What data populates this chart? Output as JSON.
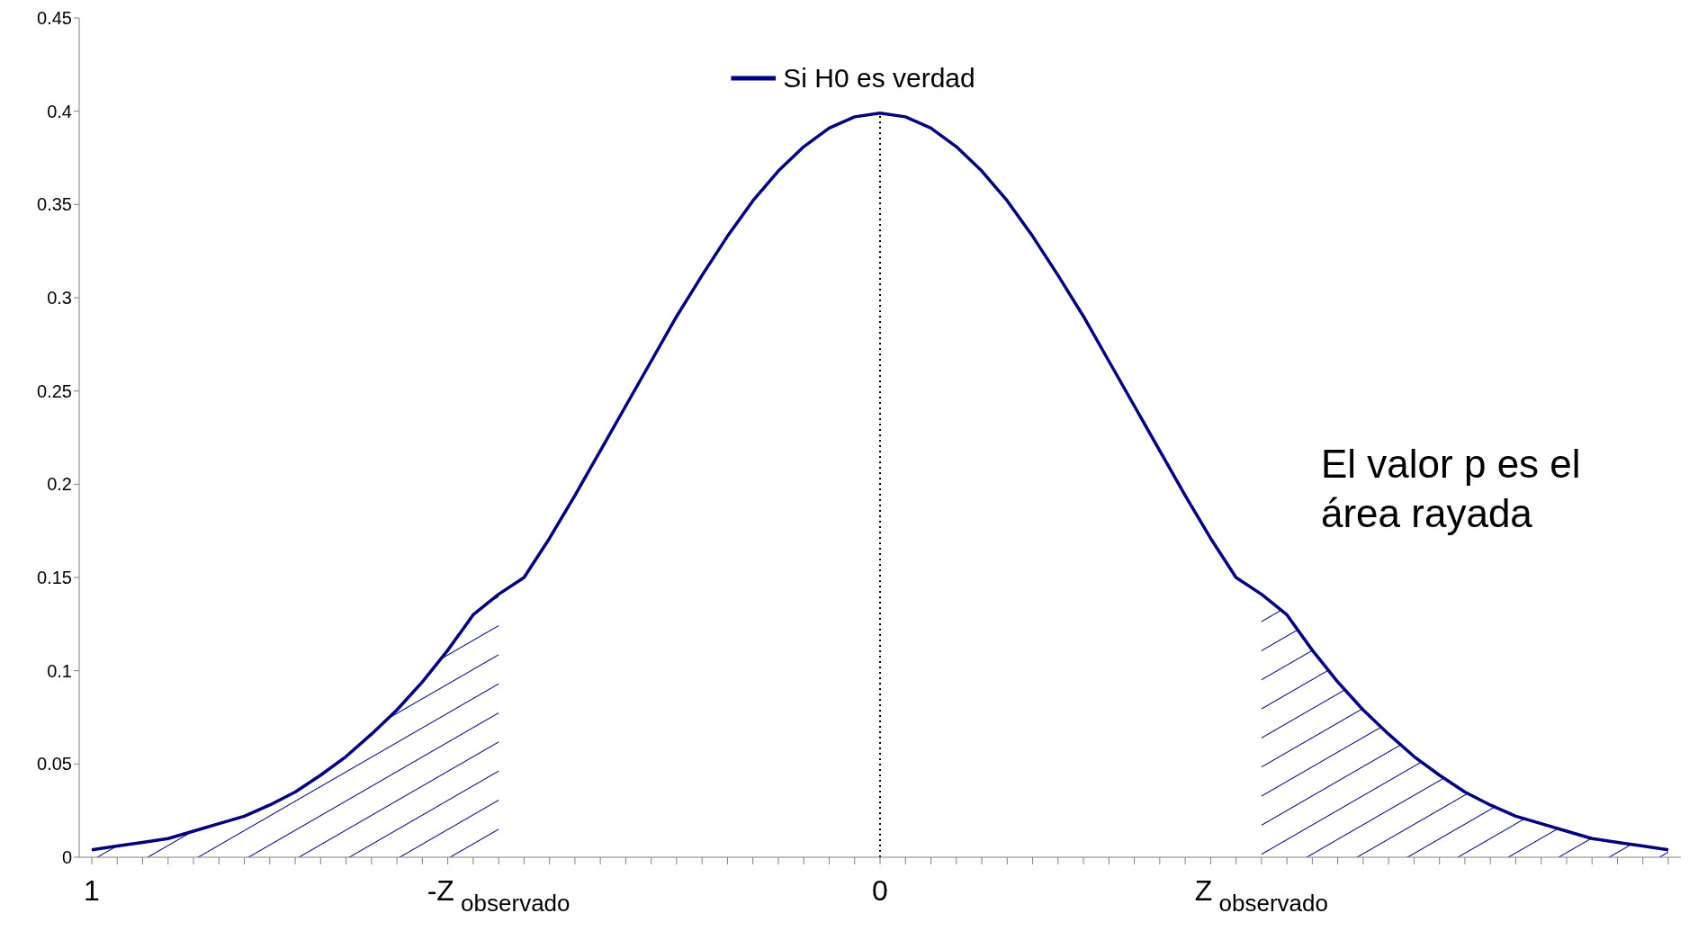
{
  "chart_data": {
    "type": "line",
    "legend": "top",
    "marker": "none",
    "line_style": "solid",
    "ylim": [
      0,
      0.45
    ],
    "yticks": [
      0,
      0.05,
      0.1,
      0.15,
      0.2,
      0.25,
      0.3,
      0.35,
      0.4,
      0.45
    ],
    "categories": [
      "1",
      null,
      null,
      null,
      null,
      null,
      null,
      null,
      null,
      null,
      null,
      null,
      null,
      null,
      null,
      null,
      "-Z$_{observado}$",
      null,
      null,
      null,
      null,
      null,
      null,
      null,
      null,
      null,
      null,
      null,
      null,
      null,
      null,
      "0",
      null,
      null,
      null,
      null,
      null,
      null,
      null,
      null,
      null,
      null,
      null,
      null,
      null,
      null,
      "Z$_{observado}$",
      null,
      null,
      null,
      null,
      null,
      null,
      null,
      null,
      null,
      null,
      null,
      null,
      null,
      null,
      null,
      null
    ],
    "series": [
      {
        "name": "Si H0 es verdad",
        "color": "#000080",
        "values": [
          0.004,
          0.006,
          0.008,
          0.01,
          0.014,
          0.018,
          0.022,
          0.028,
          0.035,
          0.044,
          0.054,
          0.066,
          0.079,
          0.094,
          0.111,
          0.13,
          0.141,
          0.15,
          0.171,
          0.194,
          0.218,
          0.242,
          0.266,
          0.29,
          0.312,
          0.333,
          0.352,
          0.368,
          0.381,
          0.391,
          0.397,
          0.399,
          0.397,
          0.391,
          0.381,
          0.368,
          0.352,
          0.333,
          0.312,
          0.29,
          0.266,
          0.242,
          0.218,
          0.194,
          0.171,
          0.15,
          0.141,
          0.13,
          0.111,
          0.094,
          0.079,
          0.066,
          0.054,
          0.044,
          0.035,
          0.028,
          0.022,
          0.018,
          0.014,
          0.01,
          0.008,
          0.006,
          0.004
        ]
      },
      {
        "type": "area",
        "color": "#000080",
        "values": [
          0.004,
          0.006,
          0.008,
          0.01,
          0.014,
          0.018,
          0.022,
          0.028,
          0.035,
          0.044,
          0.054,
          0.066,
          0.079,
          0.094,
          0.111,
          0.13,
          0.141,
          null,
          null,
          null,
          null,
          null,
          null,
          null,
          null,
          null,
          null,
          null,
          null,
          null,
          null,
          null,
          null,
          null,
          null,
          null,
          null,
          null,
          null,
          null,
          null,
          null,
          null,
          null,
          null,
          null,
          null,
          null,
          null,
          null,
          null,
          null,
          null,
          null,
          null,
          null,
          null,
          null,
          null,
          null,
          null,
          null,
          null
        ]
      },
      {
        "type": "area",
        "color": "#000080",
        "values": [
          null,
          null,
          null,
          null,
          null,
          null,
          null,
          null,
          null,
          null,
          null,
          null,
          null,
          null,
          null,
          null,
          null,
          null,
          null,
          null,
          null,
          null,
          null,
          null,
          null,
          null,
          null,
          null,
          null,
          null,
          null,
          null,
          null,
          null,
          null,
          null,
          null,
          null,
          null,
          null,
          null,
          null,
          null,
          null,
          null,
          null,
          0.141,
          0.13,
          0.111,
          0.094,
          0.079,
          0.066,
          0.054,
          0.044,
          0.035,
          0.028,
          0.022,
          0.018,
          0.014,
          0.01,
          0.008,
          0.006,
          0.004
        ]
      }
    ],
    "ref_lines": [
      {
        "axis": "x",
        "value": "0",
        "color": "#000000",
        "line_style": "dotted"
      }
    ],
    "annotations": [
      "El valor p es el área rayada"
    ]
  }
}
